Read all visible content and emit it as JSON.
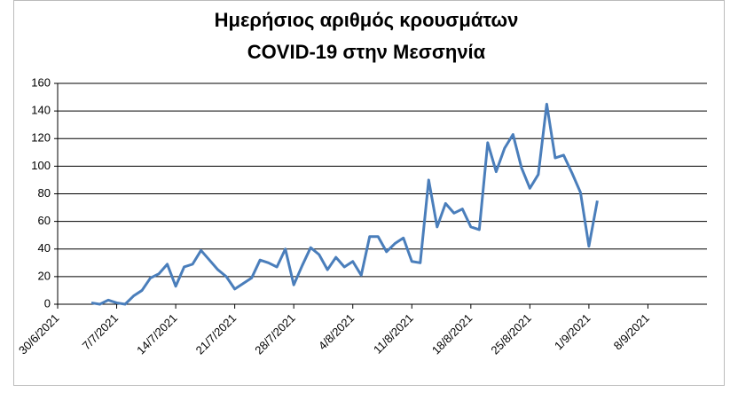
{
  "chart_data": {
    "type": "line",
    "title": [
      "Ημερήσιος αριθμός  κρουσμάτων",
      "COVID-19 στην Μεσσηνία"
    ],
    "x": [
      "2021-07-04",
      "2021-07-05",
      "2021-07-06",
      "2021-07-07",
      "2021-07-08",
      "2021-07-09",
      "2021-07-10",
      "2021-07-11",
      "2021-07-12",
      "2021-07-13",
      "2021-07-14",
      "2021-07-15",
      "2021-07-16",
      "2021-07-17",
      "2021-07-18",
      "2021-07-19",
      "2021-07-20",
      "2021-07-21",
      "2021-07-22",
      "2021-07-23",
      "2021-07-24",
      "2021-07-25",
      "2021-07-26",
      "2021-07-27",
      "2021-07-28",
      "2021-07-29",
      "2021-07-30",
      "2021-07-31",
      "2021-08-01",
      "2021-08-02",
      "2021-08-03",
      "2021-08-04",
      "2021-08-05",
      "2021-08-06",
      "2021-08-07",
      "2021-08-08",
      "2021-08-09",
      "2021-08-10",
      "2021-08-11",
      "2021-08-12",
      "2021-08-13",
      "2021-08-14",
      "2021-08-15",
      "2021-08-16",
      "2021-08-17",
      "2021-08-18",
      "2021-08-19",
      "2021-08-20",
      "2021-08-21",
      "2021-08-22",
      "2021-08-23",
      "2021-08-24",
      "2021-08-25",
      "2021-08-26",
      "2021-08-27",
      "2021-08-28",
      "2021-08-29",
      "2021-08-30",
      "2021-08-31",
      "2021-09-01",
      "2021-09-02"
    ],
    "series": [
      {
        "color": "#4a7ebb",
        "values": [
          1,
          0,
          3,
          1,
          0,
          6,
          10,
          19,
          22,
          29,
          13,
          27,
          29,
          39,
          32,
          25,
          20,
          11,
          15,
          19,
          32,
          30,
          27,
          40,
          14,
          28,
          41,
          36,
          25,
          34,
          27,
          31,
          21,
          49,
          49,
          38,
          44,
          48,
          31,
          30,
          90,
          56,
          73,
          66,
          69,
          56,
          54,
          117,
          96,
          113,
          123,
          99,
          84,
          94,
          145,
          106,
          108,
          95,
          81,
          42,
          75
        ]
      }
    ],
    "xlim": [
      "2021-06-30",
      "2021-09-15"
    ],
    "xticks": [
      {
        "value": "2021-06-30",
        "label": "30/6/2021"
      },
      {
        "value": "2021-07-07",
        "label": "7/7/2021"
      },
      {
        "value": "2021-07-14",
        "label": "14/7/2021"
      },
      {
        "value": "2021-07-21",
        "label": "21/7/2021"
      },
      {
        "value": "2021-07-28",
        "label": "28/7/2021"
      },
      {
        "value": "2021-08-04",
        "label": "4/8/2021"
      },
      {
        "value": "2021-08-11",
        "label": "11/8/2021"
      },
      {
        "value": "2021-08-18",
        "label": "18/8/2021"
      },
      {
        "value": "2021-08-25",
        "label": "25/8/2021"
      },
      {
        "value": "2021-09-01",
        "label": "1/9/2021"
      },
      {
        "value": "2021-09-08",
        "label": "8/9/2021"
      }
    ],
    "ylim": [
      0,
      160
    ],
    "yticks": [
      0,
      20,
      40,
      60,
      80,
      100,
      120,
      140,
      160
    ],
    "grid": true
  }
}
